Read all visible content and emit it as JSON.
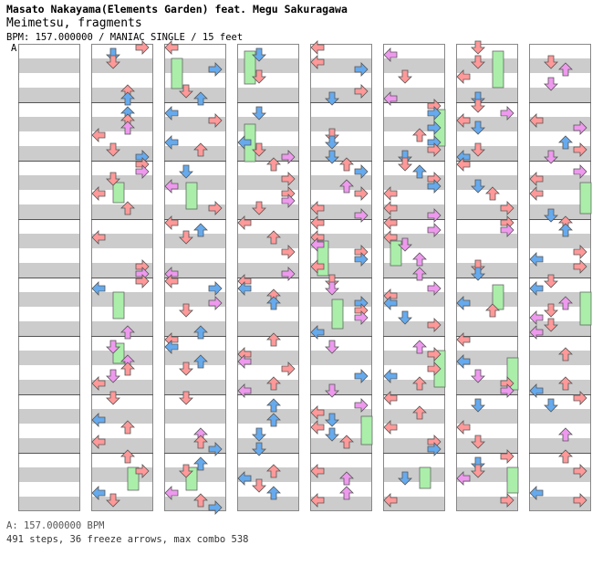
{
  "header": {
    "artist": "Masato Nakayama(Elements Garden) feat. Megu Sakuragawa",
    "title": "Meimetsu, fragments",
    "meta": "BPM: 157.000000 / MANIAC SINGLE / 15 feet"
  },
  "section_label": "A",
  "footer": {
    "bpm_line": "A: 157.000000 BPM",
    "stats_line": "491 steps, 36 freeze arrows, max combo 538"
  },
  "chart_view": {
    "columns": 8,
    "measures_per_column": 8,
    "lanes": [
      "left",
      "down",
      "up",
      "right"
    ]
  },
  "colors": {
    "background": "#ffffff",
    "stripe": "#cccccc",
    "measure_line": "#555555",
    "quarter": "#ff9999",
    "eighth": "#66aaee",
    "sixteenth": "#ee99ee",
    "third": "#55cc55",
    "freeze": "#aaeeaa"
  }
}
